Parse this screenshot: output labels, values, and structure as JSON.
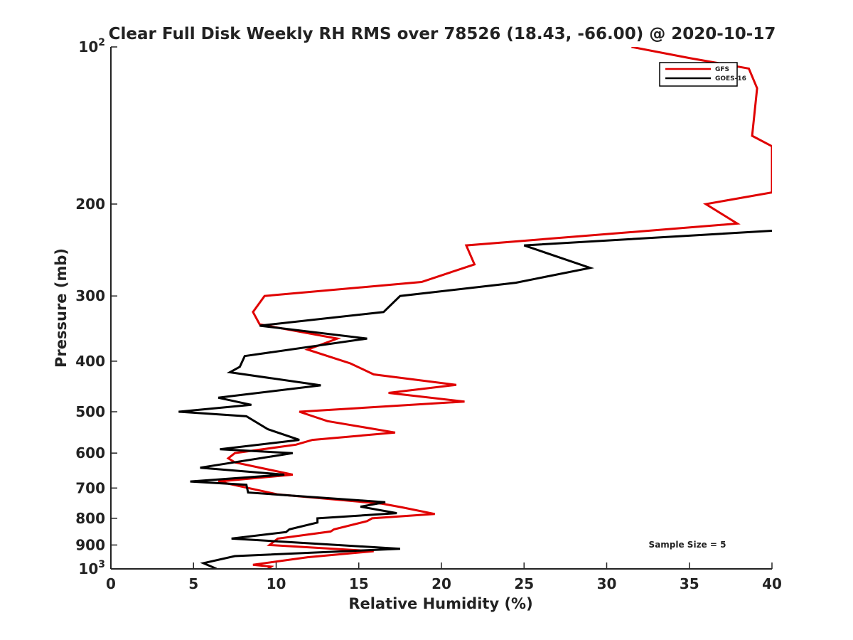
{
  "chart_data": {
    "type": "line",
    "title": "Clear Full Disk Weekly RH RMS over 78526 (18.43, -66.00) @ 2020-10-17",
    "xlabel": "Relative Humidity (%)",
    "ylabel": "Pressure (mb)",
    "xlim": [
      0,
      40
    ],
    "ylim": [
      100,
      1000
    ],
    "y_scale": "log",
    "y_reversed": true,
    "x_ticks": [
      "0",
      "5",
      "10",
      "15",
      "20",
      "25",
      "30",
      "35",
      "40"
    ],
    "y_ticks": [
      {
        "value": 100,
        "label": "10",
        "sup": "2"
      },
      {
        "value": 200,
        "label": "200"
      },
      {
        "value": 300,
        "label": "300"
      },
      {
        "value": 400,
        "label": "400"
      },
      {
        "value": 500,
        "label": "500"
      },
      {
        "value": 600,
        "label": "600"
      },
      {
        "value": 700,
        "label": "700"
      },
      {
        "value": 800,
        "label": "800"
      },
      {
        "value": 900,
        "label": "900"
      },
      {
        "value": 1000,
        "label": "10",
        "sup": "3"
      }
    ],
    "grid": false,
    "legend_position": "top-right",
    "annotation": "Sample Size = 5",
    "series": [
      {
        "name": "GFS",
        "color": "#e00000",
        "points": [
          [
            31.5,
            100
          ],
          [
            35,
            105
          ],
          [
            38.6,
            110
          ],
          [
            39.1,
            120
          ],
          [
            38.8,
            148
          ],
          [
            40,
            155
          ],
          [
            40,
            190
          ],
          [
            36,
            200
          ],
          [
            37.9,
            218
          ],
          [
            21.5,
            240
          ],
          [
            22,
            261
          ],
          [
            18.8,
            282
          ],
          [
            9.3,
            300
          ],
          [
            8.6,
            322
          ],
          [
            9,
            340
          ],
          [
            13.7,
            362
          ],
          [
            11.9,
            380
          ],
          [
            14.5,
            404
          ],
          [
            15.9,
            424
          ],
          [
            20.9,
            444
          ],
          [
            16.8,
            460
          ],
          [
            21.4,
            478
          ],
          [
            11.4,
            500
          ],
          [
            13.1,
            521
          ],
          [
            17.2,
            548
          ],
          [
            12.2,
            566
          ],
          [
            11.2,
            578
          ],
          [
            7.5,
            600
          ],
          [
            7.1,
            614
          ],
          [
            7.5,
            625
          ],
          [
            11,
            660
          ],
          [
            6.5,
            680
          ],
          [
            10.1,
            720
          ],
          [
            16.4,
            750
          ],
          [
            17.6,
            762
          ],
          [
            19.6,
            785
          ],
          [
            15.8,
            800
          ],
          [
            15.5,
            810
          ],
          [
            13.5,
            840
          ],
          [
            13.3,
            848
          ],
          [
            10.1,
            875
          ],
          [
            9.6,
            900
          ],
          [
            15.9,
            925
          ],
          [
            11.9,
            950
          ],
          [
            8.6,
            982
          ],
          [
            9.7,
            990
          ],
          [
            9.5,
            1000
          ]
        ]
      },
      {
        "name": "GOES-16",
        "color": "#000000",
        "points": [
          [
            40,
            225
          ],
          [
            25,
            240
          ],
          [
            29,
            265
          ],
          [
            24.5,
            283
          ],
          [
            17.5,
            300
          ],
          [
            16.5,
            322
          ],
          [
            9,
            342
          ],
          [
            15.5,
            362
          ],
          [
            8.1,
            391
          ],
          [
            7.8,
            410
          ],
          [
            7.2,
            420
          ],
          [
            12.7,
            445
          ],
          [
            6.5,
            470
          ],
          [
            8.5,
            485
          ],
          [
            4.1,
            500
          ],
          [
            8.2,
            510
          ],
          [
            9.5,
            540
          ],
          [
            11.4,
            566
          ],
          [
            6.6,
            590
          ],
          [
            11,
            600
          ],
          [
            5.4,
            640
          ],
          [
            10.5,
            660
          ],
          [
            4.8,
            680
          ],
          [
            8.2,
            690
          ],
          [
            8.3,
            714
          ],
          [
            16.6,
            745
          ],
          [
            15.1,
            760
          ],
          [
            17.3,
            782
          ],
          [
            12.5,
            800
          ],
          [
            12.5,
            815
          ],
          [
            10.8,
            840
          ],
          [
            10.6,
            850
          ],
          [
            7.3,
            875
          ],
          [
            17.5,
            915
          ],
          [
            7.5,
            945
          ],
          [
            5.6,
            975
          ],
          [
            6.4,
            1000
          ]
        ]
      }
    ]
  }
}
